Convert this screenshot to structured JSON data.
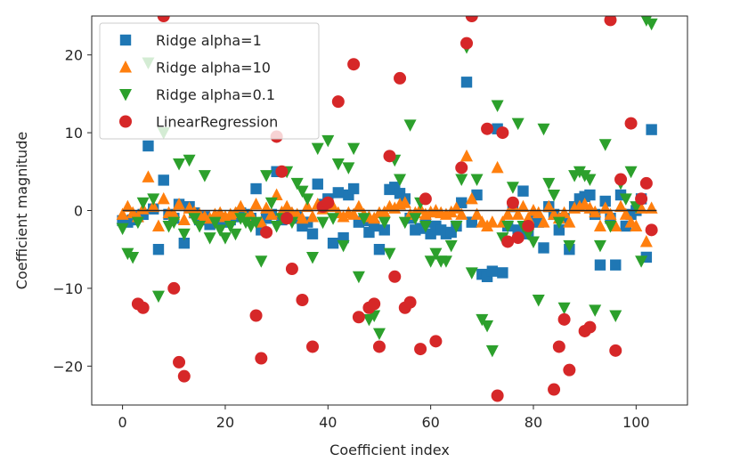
{
  "chart_data": {
    "type": "scatter",
    "title": "",
    "xlabel": "Coefficient index",
    "ylabel": "Coefficient magnitude",
    "xlim": [
      -6,
      110
    ],
    "ylim": [
      -25,
      25
    ],
    "xticks": [
      0,
      20,
      40,
      60,
      80,
      100
    ],
    "yticks": [
      -20,
      -10,
      0,
      10,
      20
    ],
    "grid": false,
    "legend_position": "upper-left",
    "hline": {
      "y": 0,
      "x_from": 0,
      "x_to": 104,
      "color": "#262626"
    },
    "series": [
      {
        "name": "Ridge alpha=1",
        "marker": "square",
        "color": "#1f77b4",
        "x": [
          0,
          1,
          2,
          3,
          4,
          5,
          6,
          7,
          8,
          9,
          10,
          11,
          12,
          13,
          14,
          15,
          16,
          17,
          18,
          19,
          20,
          21,
          22,
          23,
          24,
          25,
          26,
          27,
          28,
          29,
          30,
          31,
          32,
          33,
          34,
          35,
          36,
          37,
          38,
          39,
          40,
          41,
          42,
          43,
          44,
          45,
          46,
          47,
          48,
          49,
          50,
          51,
          52,
          53,
          54,
          55,
          56,
          57,
          58,
          59,
          60,
          61,
          62,
          63,
          64,
          65,
          66,
          67,
          68,
          69,
          70,
          71,
          72,
          73,
          74,
          75,
          76,
          77,
          78,
          79,
          80,
          81,
          82,
          83,
          84,
          85,
          86,
          87,
          88,
          89,
          90,
          91,
          92,
          93,
          94,
          95,
          96,
          97,
          98,
          99,
          100,
          101,
          102,
          103
        ],
        "y": [
          -1.3,
          -1.5,
          -1.2,
          -0.8,
          -0.5,
          8.3,
          0.2,
          -5.0,
          3.9,
          -0.5,
          -1.0,
          0.8,
          -4.2,
          0.5,
          -0.3,
          -1.2,
          -0.8,
          -1.8,
          -1.5,
          -1.0,
          -1.5,
          -1.2,
          -0.8,
          -0.3,
          -0.5,
          -1.0,
          2.8,
          -2.5,
          -1.0,
          -0.5,
          5.0,
          -1.2,
          -0.3,
          -1.0,
          -0.8,
          -2.0,
          -1.5,
          -3.0,
          3.4,
          0.8,
          1.5,
          -4.2,
          2.3,
          -3.5,
          2.0,
          2.8,
          -1.5,
          -1.3,
          -2.8,
          -2.0,
          -5.0,
          -2.5,
          2.7,
          3.0,
          2.2,
          1.5,
          -1.0,
          -2.5,
          -2.3,
          -1.5,
          -3.0,
          -2.0,
          -2.5,
          -3.0,
          -2.8,
          -2.0,
          1.0,
          16.5,
          -1.5,
          2.0,
          -8.2,
          -8.5,
          -7.8,
          10.5,
          -8.0,
          -2.0,
          0.5,
          -2.5,
          2.5,
          -3.0,
          -1.0,
          -1.5,
          -4.8,
          0.5,
          -0.5,
          -2.5,
          -1.0,
          -5.0,
          0.5,
          1.5,
          1.8,
          2.0,
          -0.5,
          -7.0,
          1.2,
          -1.0,
          -7.0,
          2.0,
          -2.0,
          -0.5,
          0.0,
          1.5,
          -6.0,
          10.4
        ]
      },
      {
        "name": "Ridge alpha=10",
        "marker": "triangle-up",
        "color": "#ff7f0e",
        "x": [
          0,
          1,
          2,
          3,
          4,
          5,
          6,
          7,
          8,
          9,
          10,
          11,
          12,
          13,
          14,
          15,
          16,
          17,
          18,
          19,
          20,
          21,
          22,
          23,
          24,
          25,
          26,
          27,
          28,
          29,
          30,
          31,
          32,
          33,
          34,
          35,
          36,
          37,
          38,
          39,
          40,
          41,
          42,
          43,
          44,
          45,
          46,
          47,
          48,
          49,
          50,
          51,
          52,
          53,
          54,
          55,
          56,
          57,
          58,
          59,
          60,
          61,
          62,
          63,
          64,
          65,
          66,
          67,
          68,
          69,
          70,
          71,
          72,
          73,
          74,
          75,
          76,
          77,
          78,
          79,
          80,
          81,
          82,
          83,
          84,
          85,
          86,
          87,
          88,
          89,
          90,
          91,
          92,
          93,
          94,
          95,
          96,
          97,
          98,
          99,
          100,
          101,
          102,
          103
        ],
        "y": [
          -0.5,
          0.5,
          -0.3,
          -0.8,
          0.2,
          4.3,
          0.5,
          -2.0,
          1.5,
          -0.3,
          -0.5,
          0.8,
          -1.2,
          0.3,
          -0.2,
          -0.5,
          -0.8,
          -1.0,
          -0.5,
          -0.3,
          -0.8,
          -0.5,
          -0.3,
          0.5,
          -0.8,
          -0.5,
          0.8,
          -1.5,
          0.3,
          -0.5,
          2.0,
          -0.2,
          0.5,
          -0.3,
          -0.5,
          -1.0,
          0.5,
          -0.8,
          0.8,
          0.2,
          1.0,
          0.5,
          -0.3,
          -0.8,
          -0.3,
          -0.5,
          0.5,
          -0.5,
          -0.8,
          -1.0,
          -0.3,
          -0.2,
          0.5,
          0.3,
          0.8,
          1.0,
          -0.5,
          -0.3,
          0.2,
          -0.5,
          -0.2,
          0.0,
          -0.3,
          -0.5,
          -0.2,
          0.3,
          -0.5,
          7.0,
          1.5,
          -0.5,
          -1.5,
          -2.0,
          -1.5,
          5.5,
          -1.5,
          -0.5,
          0.5,
          -0.5,
          0.5,
          -1.0,
          0.0,
          -0.3,
          -1.5,
          0.5,
          -0.5,
          -1.0,
          -0.3,
          -1.5,
          0.3,
          0.5,
          0.8,
          0.3,
          -0.2,
          -2.0,
          0.3,
          -0.5,
          -2.0,
          0.5,
          -0.5,
          -1.5,
          -2.0,
          0.3,
          -4.0,
          0.3
        ]
      },
      {
        "name": "Ridge alpha=0.1",
        "marker": "triangle-down",
        "color": "#2ca02c",
        "x": [
          0,
          1,
          2,
          3,
          4,
          5,
          6,
          7,
          8,
          9,
          10,
          11,
          12,
          13,
          14,
          15,
          16,
          17,
          18,
          19,
          20,
          21,
          22,
          23,
          24,
          25,
          26,
          27,
          28,
          29,
          30,
          31,
          32,
          33,
          34,
          35,
          36,
          37,
          38,
          39,
          40,
          41,
          42,
          43,
          44,
          45,
          46,
          47,
          48,
          49,
          50,
          51,
          52,
          53,
          54,
          55,
          56,
          57,
          58,
          59,
          60,
          61,
          62,
          63,
          64,
          65,
          66,
          67,
          68,
          69,
          70,
          71,
          72,
          73,
          74,
          75,
          76,
          77,
          78,
          79,
          80,
          81,
          82,
          83,
          84,
          85,
          86,
          87,
          88,
          89,
          90,
          91,
          92,
          93,
          94,
          95,
          96,
          97,
          98,
          99,
          100,
          101,
          102,
          103
        ],
        "y": [
          -2.3,
          -5.5,
          -6.0,
          -1.5,
          1.0,
          19.0,
          1.5,
          -11.0,
          10.0,
          -2.0,
          -1.5,
          6.0,
          -3.0,
          6.5,
          -1.0,
          -2.0,
          4.5,
          -3.5,
          -1.5,
          -2.5,
          -3.5,
          -2.0,
          -3.0,
          -1.0,
          -1.5,
          -2.0,
          -1.5,
          -6.5,
          4.5,
          1.0,
          -2.0,
          -1.0,
          5.0,
          -1.5,
          3.5,
          2.5,
          1.5,
          -6.0,
          8.0,
          -1.5,
          9.0,
          -1.0,
          6.0,
          -4.5,
          5.5,
          8.0,
          -8.5,
          -1.0,
          -14.0,
          -13.5,
          -15.8,
          -1.5,
          -5.5,
          6.5,
          4.0,
          -1.5,
          11.0,
          -1.0,
          1.0,
          -2.0,
          -6.5,
          -5.5,
          -6.5,
          -6.5,
          -4.5,
          -2.0,
          4.0,
          21.0,
          -8.0,
          4.0,
          -14.0,
          -14.8,
          -18.0,
          13.5,
          -3.5,
          -2.0,
          3.0,
          11.2,
          -2.0,
          -3.0,
          -4.0,
          -11.5,
          10.5,
          3.5,
          2.0,
          -1.5,
          -12.5,
          -4.5,
          4.5,
          5.0,
          4.5,
          4.0,
          -12.8,
          -4.5,
          8.5,
          -2.0,
          -13.5,
          3.5,
          1.5,
          5.0,
          0.5,
          -6.5,
          24.5,
          24.0
        ]
      },
      {
        "name": "LinearRegression",
        "marker": "circle",
        "color": "#d62728",
        "x": [
          3,
          4,
          8,
          10,
          11,
          12,
          26,
          27,
          28,
          30,
          31,
          32,
          33,
          35,
          37,
          39,
          40,
          42,
          45,
          46,
          48,
          49,
          50,
          52,
          53,
          54,
          55,
          56,
          58,
          59,
          61,
          66,
          67,
          68,
          71,
          73,
          74,
          75,
          76,
          77,
          79,
          84,
          85,
          86,
          87,
          90,
          91,
          95,
          96,
          97,
          99,
          101,
          102,
          103
        ],
        "y": [
          -12.0,
          -12.5,
          25.0,
          -10.0,
          -19.5,
          -21.3,
          -13.5,
          -19.0,
          -2.8,
          9.5,
          5.0,
          -1.0,
          -7.5,
          -11.5,
          -17.5,
          0.5,
          1.0,
          14.0,
          18.8,
          -13.7,
          -12.5,
          -12.0,
          -17.5,
          7.0,
          -8.5,
          17.0,
          -12.5,
          -11.8,
          -17.8,
          1.5,
          -16.8,
          5.5,
          21.5,
          25.0,
          10.5,
          -23.8,
          10.0,
          -4.0,
          1.0,
          -3.5,
          -2.0,
          -23.0,
          -17.5,
          -14.0,
          -20.5,
          -15.5,
          -15.0,
          24.5,
          -18.0,
          4.0,
          11.2,
          1.5,
          3.5,
          -2.5
        ]
      }
    ]
  }
}
